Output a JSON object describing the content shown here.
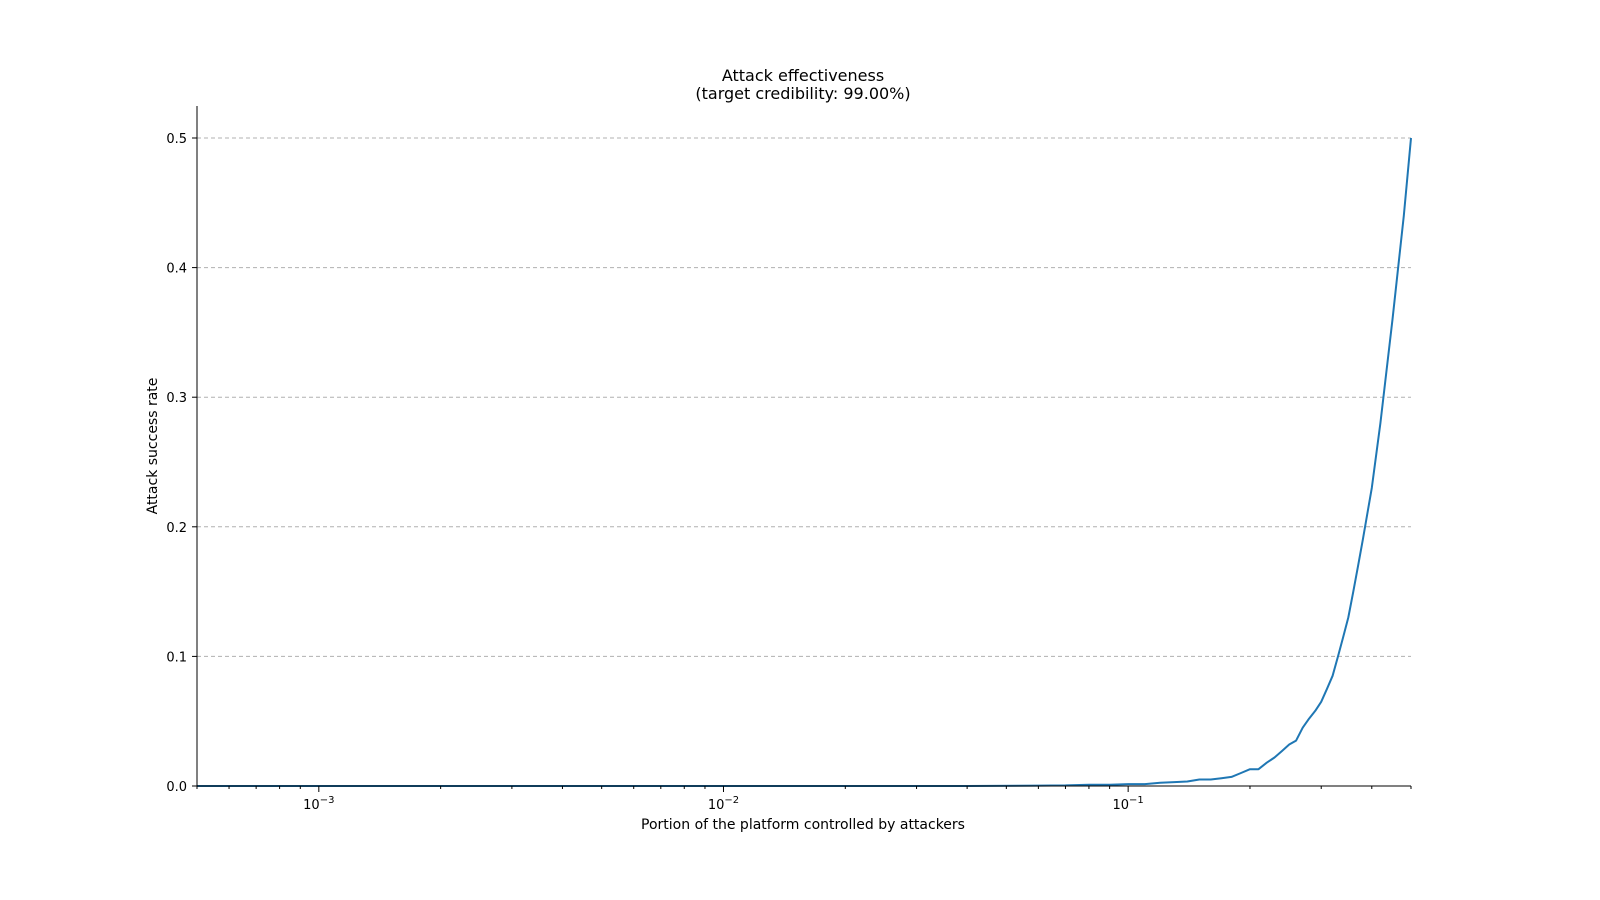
{
  "chart_data": {
    "type": "line",
    "title": [
      "Attack effectiveness",
      "(target credibility: 99.00%)"
    ],
    "xlabel": "Portion of the platform controlled by attackers",
    "ylabel": "Attack success rate",
    "xscale": "log",
    "xlim": [
      0.0005,
      0.5
    ],
    "ylim": [
      0,
      0.5
    ],
    "yticks": [
      0.0,
      0.1,
      0.2,
      0.3,
      0.4,
      0.5
    ],
    "ytick_labels": [
      "0.0",
      "0.1",
      "0.2",
      "0.3",
      "0.4",
      "0.5"
    ],
    "xticks": [
      0.001,
      0.01,
      0.1
    ],
    "xtick_labels": [
      {
        "base": "10",
        "exp": "−3"
      },
      {
        "base": "10",
        "exp": "−2"
      },
      {
        "base": "10",
        "exp": "−1"
      }
    ],
    "grid": "y-dashed",
    "color": "#1f77b4",
    "series": [
      {
        "x": [
          0.0005,
          0.001,
          0.005,
          0.01,
          0.02,
          0.04,
          0.06,
          0.07,
          0.08,
          0.09,
          0.1,
          0.11,
          0.12,
          0.13,
          0.14,
          0.15,
          0.16,
          0.17,
          0.18,
          0.19,
          0.2,
          0.21,
          0.22,
          0.23,
          0.24,
          0.25,
          0.26,
          0.27,
          0.28,
          0.29,
          0.3,
          0.31,
          0.32,
          0.33,
          0.34,
          0.35,
          0.36,
          0.37,
          0.38,
          0.4,
          0.42,
          0.45,
          0.48,
          0.5
        ],
        "y": [
          0.0,
          0.0,
          0.0,
          0.0,
          0.0,
          0.0,
          0.0003,
          0.0005,
          0.001,
          0.001,
          0.0015,
          0.0015,
          0.0025,
          0.003,
          0.0035,
          0.005,
          0.005,
          0.006,
          0.007,
          0.01,
          0.013,
          0.013,
          0.018,
          0.022,
          0.027,
          0.032,
          0.035,
          0.045,
          0.052,
          0.058,
          0.065,
          0.075,
          0.085,
          0.1,
          0.115,
          0.13,
          0.15,
          0.17,
          0.19,
          0.23,
          0.28,
          0.36,
          0.44,
          0.5
        ]
      }
    ]
  }
}
